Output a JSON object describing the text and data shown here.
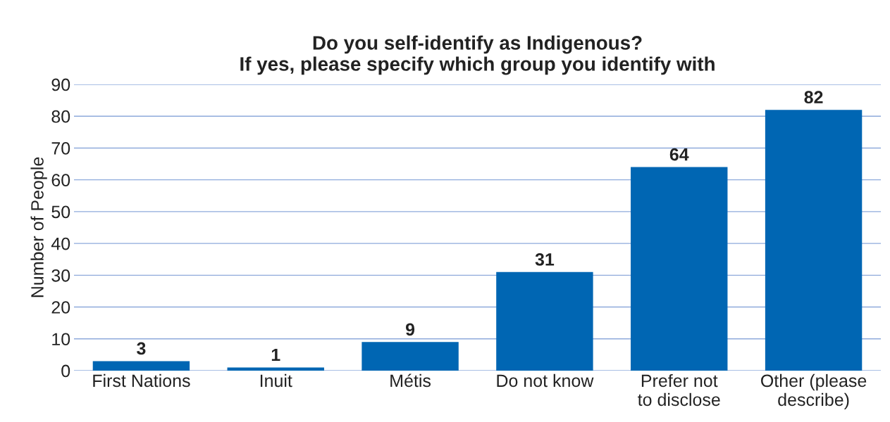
{
  "chart_data": {
    "type": "bar",
    "title": "Do you self-identify as Indigenous?\nIf yes, please specify which group you identify with",
    "ylabel": "Number of People",
    "categories": [
      "First Nations",
      "Inuit",
      "Métis",
      "Do not know",
      "Prefer not\nto disclose",
      "Other (please\ndescribe)"
    ],
    "values": [
      3,
      1,
      9,
      31,
      64,
      82
    ],
    "color": "#0066b3",
    "ylim": [
      0,
      90
    ],
    "yticks": [
      0,
      10,
      20,
      30,
      40,
      50,
      60,
      70,
      80,
      90
    ],
    "grid": "y",
    "data_labels": true,
    "legend": false
  }
}
